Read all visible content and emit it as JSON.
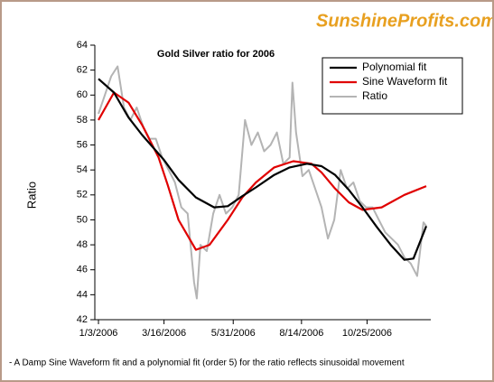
{
  "brand": "SunshineProfits.com",
  "chart_data": {
    "type": "line",
    "title": "Gold Silver ratio for 2006",
    "ylabel": "Ratio",
    "note": "- A Damp Sine Waveform fit and a polynomial fit (order 5) for the ratio reflects sinusoidal movement",
    "xlim": [
      "2005-12-30",
      "2007-01-03"
    ],
    "xticks": [
      {
        "value": "2006-01-03",
        "label": "1/3/2006"
      },
      {
        "value": "2006-03-16",
        "label": "3/16/2006"
      },
      {
        "value": "2006-05-31",
        "label": "5/31/2006"
      },
      {
        "value": "2006-08-14",
        "label": "8/14/2006"
      },
      {
        "value": "2006-10-25",
        "label": "10/25/2006"
      }
    ],
    "ylim": [
      42,
      64
    ],
    "yticks": [
      42,
      44,
      46,
      48,
      50,
      52,
      54,
      56,
      58,
      60,
      62,
      64
    ],
    "legend": "top-right",
    "series": [
      {
        "name": "Polynomial fit",
        "color": "#000000",
        "width": 2.2,
        "x": [
          "2006-01-03",
          "2006-01-20",
          "2006-02-05",
          "2006-02-20",
          "2006-03-16",
          "2006-04-01",
          "2006-04-20",
          "2006-05-10",
          "2006-05-25",
          "2006-06-10",
          "2006-06-25",
          "2006-07-15",
          "2006-08-01",
          "2006-08-20",
          "2006-09-05",
          "2006-09-20",
          "2006-10-05",
          "2006-10-20",
          "2006-11-05",
          "2006-11-20",
          "2006-12-05",
          "2006-12-15",
          "2006-12-29"
        ],
        "values": [
          61.3,
          60.2,
          58.2,
          56.8,
          54.8,
          53.2,
          51.8,
          51.0,
          51.1,
          51.9,
          52.6,
          53.6,
          54.2,
          54.5,
          54.3,
          53.6,
          52.4,
          51.0,
          49.4,
          48.0,
          46.8,
          46.9,
          49.5
        ]
      },
      {
        "name": "Sine Waveform fit",
        "color": "#e00000",
        "width": 2.2,
        "x": [
          "2006-01-03",
          "2006-01-20",
          "2006-02-05",
          "2006-02-20",
          "2006-03-10",
          "2006-03-20",
          "2006-04-01",
          "2006-04-20",
          "2006-05-05",
          "2006-05-25",
          "2006-06-10",
          "2006-06-25",
          "2006-07-15",
          "2006-08-05",
          "2006-08-25",
          "2006-09-05",
          "2006-09-20",
          "2006-10-05",
          "2006-10-20",
          "2006-11-10",
          "2006-12-05",
          "2006-12-29"
        ],
        "values": [
          58.0,
          60.2,
          59.4,
          57.6,
          55.0,
          52.8,
          50.0,
          47.6,
          48.0,
          50.0,
          51.8,
          53.0,
          54.2,
          54.7,
          54.5,
          53.8,
          52.5,
          51.4,
          50.8,
          51.0,
          52.0,
          52.7
        ]
      },
      {
        "name": "Ratio",
        "color": "#b4b4b4",
        "width": 2,
        "x": [
          "2006-01-03",
          "2006-01-10",
          "2006-01-17",
          "2006-01-24",
          "2006-01-31",
          "2006-02-07",
          "2006-02-14",
          "2006-02-21",
          "2006-02-28",
          "2006-03-07",
          "2006-03-14",
          "2006-03-21",
          "2006-03-28",
          "2006-04-04",
          "2006-04-11",
          "2006-04-18",
          "2006-04-21",
          "2006-04-25",
          "2006-05-02",
          "2006-05-09",
          "2006-05-16",
          "2006-05-23",
          "2006-05-30",
          "2006-06-06",
          "2006-06-13",
          "2006-06-20",
          "2006-06-27",
          "2006-07-04",
          "2006-07-11",
          "2006-07-18",
          "2006-07-25",
          "2006-08-01",
          "2006-08-04",
          "2006-08-08",
          "2006-08-15",
          "2006-08-22",
          "2006-08-29",
          "2006-09-05",
          "2006-09-12",
          "2006-09-19",
          "2006-09-26",
          "2006-10-03",
          "2006-10-10",
          "2006-10-17",
          "2006-10-24",
          "2006-10-31",
          "2006-11-07",
          "2006-11-14",
          "2006-11-21",
          "2006-11-28",
          "2006-12-05",
          "2006-12-12",
          "2006-12-19",
          "2006-12-26",
          "2006-12-29"
        ],
        "values": [
          58.5,
          60,
          61.5,
          62.3,
          59,
          58,
          59,
          57.5,
          56.5,
          56.5,
          55,
          54,
          53,
          51,
          50.5,
          45,
          43.7,
          48,
          47.5,
          50.5,
          52,
          50.5,
          51,
          52,
          58,
          56,
          57,
          55.5,
          56,
          57,
          54.5,
          55,
          61,
          57,
          53.5,
          54,
          52.5,
          51,
          48.5,
          50,
          54,
          52.5,
          53,
          51.5,
          51,
          51,
          50,
          49,
          48.5,
          48,
          47,
          46.5,
          45.5,
          49.8,
          49.5
        ]
      }
    ]
  }
}
